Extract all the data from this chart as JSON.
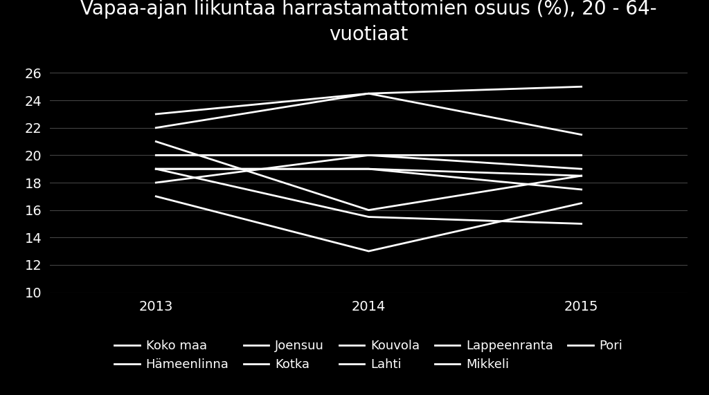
{
  "title": "Vapaa-ajan liikuntaa harrastamattomien osuus (%), 20 - 64-\nvuotiaat",
  "years": [
    2013,
    2014,
    2015
  ],
  "series": [
    {
      "name": "Koko maa",
      "values": [
        20,
        20,
        19
      ]
    },
    {
      "name": "Hämeenlinna",
      "values": [
        19,
        19,
        18.5
      ]
    },
    {
      "name": "Joensuu",
      "values": [
        22,
        24.5,
        21.5
      ]
    },
    {
      "name": "Kotka",
      "values": [
        19,
        15.5,
        15
      ]
    },
    {
      "name": "Kouvola",
      "values": [
        23,
        24.5,
        25
      ]
    },
    {
      "name": "Lahti",
      "values": [
        18,
        20,
        20
      ]
    },
    {
      "name": "Lappeenranta",
      "values": [
        21,
        16,
        18.5
      ]
    },
    {
      "name": "Mikkeli",
      "values": [
        17,
        13,
        16.5
      ]
    },
    {
      "name": "Pori",
      "values": [
        19,
        19,
        17.5
      ]
    }
  ],
  "ylim": [
    10,
    27
  ],
  "yticks": [
    10,
    12,
    14,
    16,
    18,
    20,
    22,
    24,
    26
  ],
  "background_color": "#000000",
  "text_color": "#ffffff",
  "line_color": "#ffffff",
  "grid_color": "#444444",
  "title_fontsize": 20,
  "tick_fontsize": 14,
  "legend_fontsize": 13,
  "line_width": 2.0
}
